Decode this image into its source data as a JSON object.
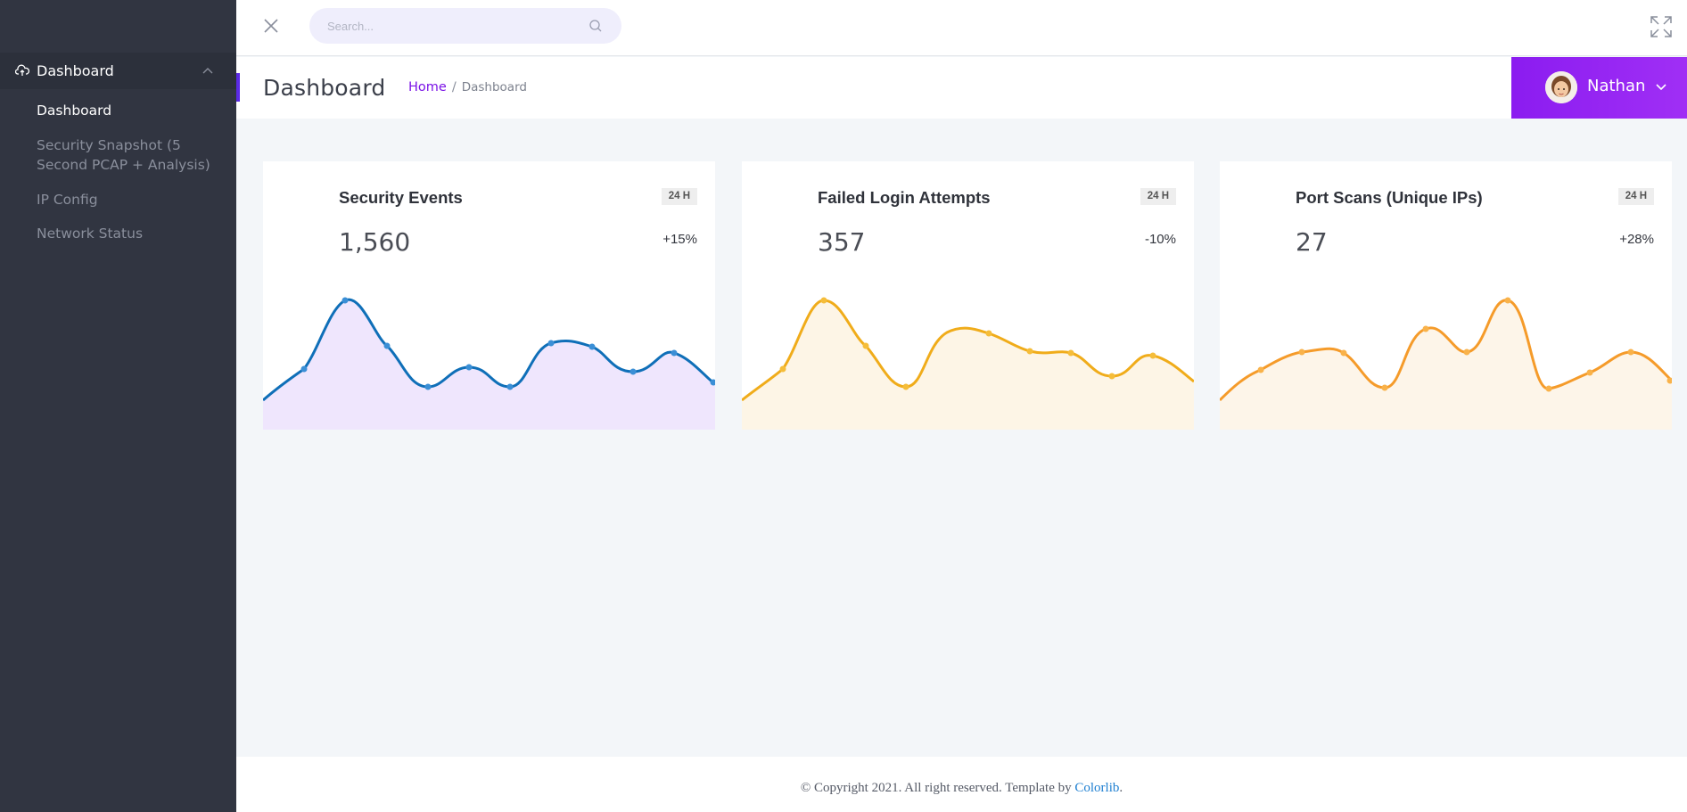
{
  "sidebar": {
    "group": {
      "label": "Dashboard",
      "icon": "cloud-upload-icon",
      "expanded": true
    },
    "items": [
      {
        "label": "Dashboard",
        "active": true
      },
      {
        "label": "Security Snapshot (5 Second PCAP + Analysis)",
        "active": false
      },
      {
        "label": "IP Config",
        "active": false
      },
      {
        "label": "Network Status",
        "active": false
      }
    ]
  },
  "topbar": {
    "search_placeholder": "Search...",
    "icons": [
      "close-icon",
      "search-icon",
      "fullscreen-icon"
    ]
  },
  "header": {
    "title": "Dashboard",
    "breadcrumb": {
      "home": "Home",
      "separator": "/",
      "current": "Dashboard"
    }
  },
  "user": {
    "name": "Nathan"
  },
  "cards": [
    {
      "title": "Security Events",
      "badge": "24 H",
      "value": "1,560",
      "change": "+15%",
      "color": "#0f6fb8",
      "fill": "#efe6fd"
    },
    {
      "title": "Failed Login Attempts",
      "badge": "24 H",
      "value": "357",
      "change": "-10%",
      "color": "#f0ac1a",
      "fill": "#fdf5e6"
    },
    {
      "title": "Port Scans (Unique IPs)",
      "badge": "24 H",
      "value": "27",
      "change": "+28%",
      "color": "#f59b2a",
      "fill": "#fdf5e9"
    }
  ],
  "footer": {
    "text": "© Copyright 2021. All right reserved. Template by ",
    "link": "Colorlib",
    "suffix": "."
  },
  "colors": {
    "sidebar_bg": "#313541",
    "accent": "#8b1cf0",
    "link": "#7a12e6"
  }
}
